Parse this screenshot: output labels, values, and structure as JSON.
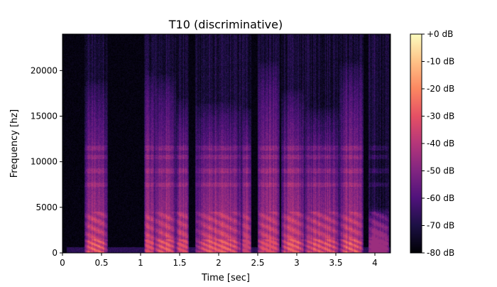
{
  "chart_data": {
    "type": "heatmap",
    "title": "T10 (discriminative)",
    "xlabel": "Time [sec]",
    "ylabel": "Frequency [hz]",
    "xlim": [
      0,
      4.2
    ],
    "ylim": [
      0,
      24000
    ],
    "x_ticks": [
      0,
      0.5,
      1,
      1.5,
      2,
      2.5,
      3,
      3.5,
      4
    ],
    "x_tick_labels": [
      "0",
      "0.5",
      "1",
      "1.5",
      "2",
      "2.5",
      "3",
      "3.5",
      "4"
    ],
    "y_ticks": [
      0,
      5000,
      10000,
      15000,
      20000
    ],
    "y_tick_labels": [
      "0",
      "5000",
      "10000",
      "15000",
      "20000"
    ],
    "colorbar": {
      "range_db": [
        -80,
        0
      ],
      "ticks": [
        0,
        -10,
        -20,
        -30,
        -40,
        -50,
        -60,
        -70,
        -80
      ],
      "tick_labels": [
        "+0 dB",
        "-10 dB",
        "-20 dB",
        "-30 dB",
        "-40 dB",
        "-50 dB",
        "-60 dB",
        "-70 dB",
        "-80 dB"
      ],
      "colormap": "magma"
    },
    "events": [
      {
        "t_start": 0.28,
        "t_end": 0.58,
        "max_freq": 19000,
        "peak_db": -20
      },
      {
        "t_start": 1.05,
        "t_end": 1.18,
        "max_freq": 20000,
        "peak_db": -30
      },
      {
        "t_start": 1.18,
        "t_end": 1.45,
        "max_freq": 19500,
        "peak_db": -25
      },
      {
        "t_start": 1.45,
        "t_end": 1.62,
        "max_freq": 17000,
        "peak_db": -30
      },
      {
        "t_start": 1.7,
        "t_end": 2.3,
        "max_freq": 16500,
        "peak_db": -25
      },
      {
        "t_start": 2.3,
        "t_end": 2.42,
        "max_freq": 16000,
        "peak_db": -35
      },
      {
        "t_start": 2.5,
        "t_end": 2.78,
        "max_freq": 21000,
        "peak_db": -30
      },
      {
        "t_start": 2.8,
        "t_end": 3.1,
        "max_freq": 18000,
        "peak_db": -25
      },
      {
        "t_start": 3.1,
        "t_end": 3.55,
        "max_freq": 16000,
        "peak_db": -25
      },
      {
        "t_start": 3.55,
        "t_end": 3.85,
        "max_freq": 21000,
        "peak_db": -20
      },
      {
        "t_start": 3.92,
        "t_end": 4.18,
        "max_freq": 5000,
        "peak_db": -45
      }
    ],
    "bands_hz": [
      7500,
      9000,
      10500,
      11500
    ],
    "gaps": [
      [
        0.58,
        1.05
      ],
      [
        1.62,
        1.7
      ],
      [
        2.42,
        2.5
      ]
    ]
  },
  "colors": {
    "background": "#ffffff",
    "magma_stops": [
      "#000004",
      "#1c1044",
      "#4f127b",
      "#812581",
      "#b5367a",
      "#e55064",
      "#fb8761",
      "#fec287",
      "#fcfdbf"
    ]
  }
}
